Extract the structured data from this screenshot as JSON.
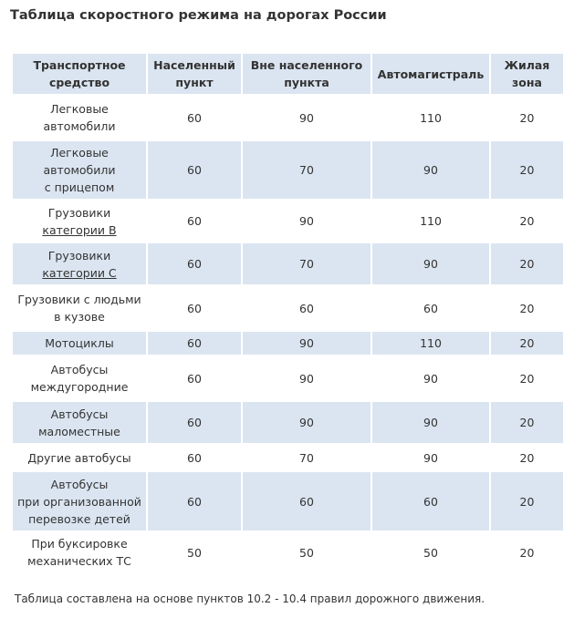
{
  "title": "Таблица скоростного режима на дорогах России",
  "table": {
    "headers": [
      [
        "Транспортное",
        "средство"
      ],
      [
        "Населенный",
        "пункт"
      ],
      [
        "Вне населенного",
        "пункта"
      ],
      [
        "Автомагистраль"
      ],
      [
        "Жилая",
        "зона"
      ]
    ],
    "rows": [
      {
        "vehicle": [
          "Легковые",
          "автомобили"
        ],
        "link_line": -1,
        "city": "60",
        "outside": "90",
        "highway": "110",
        "residential": "20"
      },
      {
        "vehicle": [
          "Легковые",
          "автомобили",
          "с прицепом"
        ],
        "link_line": -1,
        "city": "60",
        "outside": "70",
        "highway": "90",
        "residential": "20"
      },
      {
        "vehicle": [
          "Грузовики",
          "категории B"
        ],
        "link_line": 1,
        "city": "60",
        "outside": "90",
        "highway": "110",
        "residential": "20"
      },
      {
        "vehicle": [
          "Грузовики",
          "категории C"
        ],
        "link_line": 1,
        "city": "60",
        "outside": "70",
        "highway": "90",
        "residential": "20"
      },
      {
        "vehicle": [
          "Грузовики с людьми",
          "в кузове"
        ],
        "link_line": -1,
        "city": "60",
        "outside": "60",
        "highway": "60",
        "residential": "20"
      },
      {
        "vehicle": [
          "Мотоциклы"
        ],
        "link_line": -1,
        "city": "60",
        "outside": "90",
        "highway": "110",
        "residential": "20"
      },
      {
        "vehicle": [
          "Автобусы",
          "междугородние"
        ],
        "link_line": -1,
        "city": "60",
        "outside": "90",
        "highway": "90",
        "residential": "20"
      },
      {
        "vehicle": [
          "Автобусы",
          "маломестные"
        ],
        "link_line": -1,
        "city": "60",
        "outside": "90",
        "highway": "90",
        "residential": "20"
      },
      {
        "vehicle": [
          "Другие автобусы"
        ],
        "link_line": -1,
        "city": "60",
        "outside": "70",
        "highway": "90",
        "residential": "20"
      },
      {
        "vehicle": [
          "Автобусы",
          "при организованной",
          "перевозке детей"
        ],
        "link_line": -1,
        "city": "60",
        "outside": "60",
        "highway": "60",
        "residential": "20"
      },
      {
        "vehicle": [
          "При буксировке",
          "механических ТС"
        ],
        "link_line": -1,
        "city": "50",
        "outside": "50",
        "highway": "50",
        "residential": "20"
      }
    ]
  },
  "footnote": "Таблица составлена на основе пунктов 10.2 - 10.4 правил дорожного движения.",
  "colors": {
    "header_bg": "#dbe5f1",
    "stripe_bg": "#dbe5f1",
    "text": "#333333"
  }
}
